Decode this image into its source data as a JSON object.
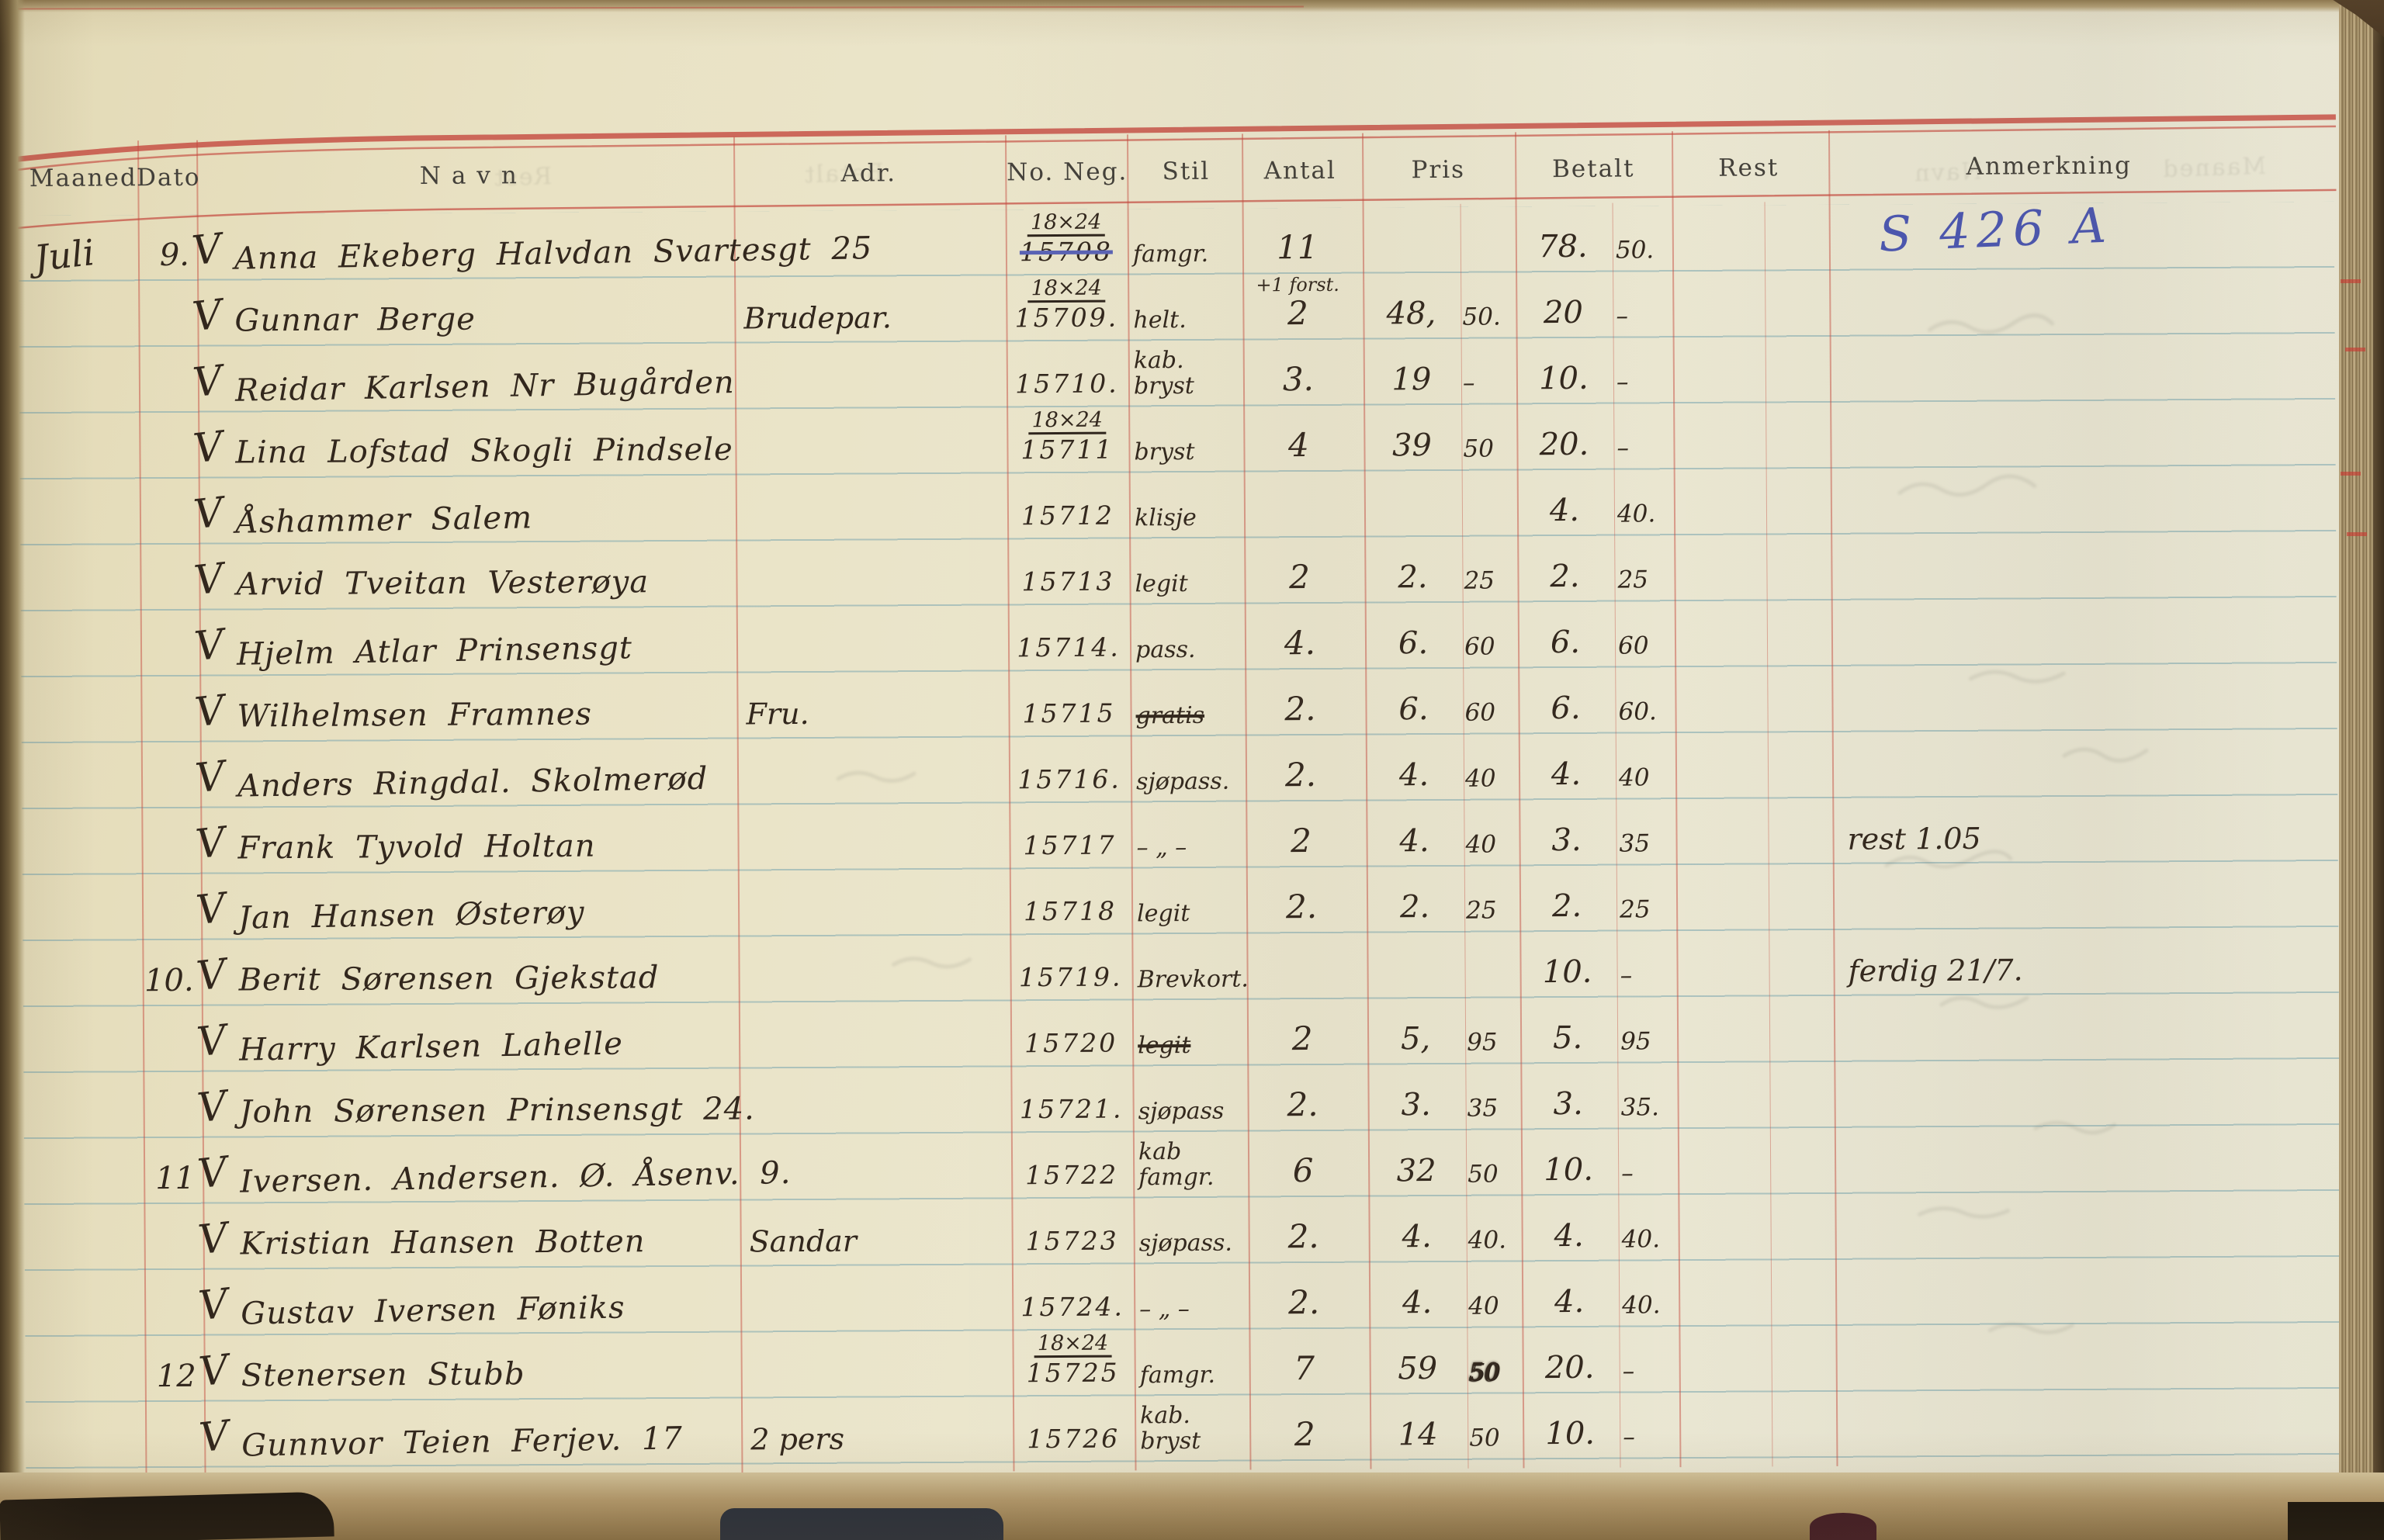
{
  "document": {
    "kind": "photographer-ledger-scan",
    "check_glyph": "V",
    "colors": {
      "paper": "#e9e3c9",
      "rule_red": "#c84f44",
      "rule_blue": "#7ba6af",
      "ink": "#32271d",
      "ink_blue": "#4a55b0"
    }
  },
  "table": {
    "headers": [
      "Maaned",
      "Dato",
      "Navn",
      "Adr.",
      "No. Neg.",
      "Stil",
      "Antal",
      "Pris",
      "Betalt",
      "Rest",
      "Anmerkning"
    ],
    "rows": [
      {
        "maaned": "Juli",
        "dato": "9.",
        "check": true,
        "navn": "Anna Ekeberg Halvdan Svartesgt 25",
        "neg_size": "18×24",
        "neg_no": "15708",
        "neg_struck": true,
        "stil": "famgr.",
        "antal": "11",
        "betalt": "78.",
        "betalt_ore": "50.",
        "anm": "S 426 A",
        "anm_blue": true
      },
      {
        "check": true,
        "navn": "Gunnar Berge",
        "adr": "Brudepar.",
        "neg_size": "18×24",
        "neg_no": "15709.",
        "stil": "helt.",
        "antal_note": "+1 forst.",
        "antal": "2",
        "pris": "48,",
        "pris_ore": "50.",
        "betalt": "20",
        "betalt_ore": "–"
      },
      {
        "check": true,
        "navn": "Reidar Karlsen Nr Bugården",
        "neg_no": "15710.",
        "stil": "kab.",
        "stil2": "bryst",
        "antal": "3.",
        "pris": "19",
        "pris_ore": "–",
        "betalt": "10.",
        "betalt_ore": "–"
      },
      {
        "check": true,
        "navn": "Lina Lofstad Skogli Pindsele",
        "neg_size": "18×24",
        "neg_no": "15711",
        "stil": "bryst",
        "antal": "4",
        "pris": "39",
        "pris_ore": "50",
        "betalt": "20.",
        "betalt_ore": "–"
      },
      {
        "check": true,
        "navn": "Åshammer Salem",
        "neg_no": "15712",
        "stil": "klisje",
        "betalt": "4.",
        "betalt_ore": "40."
      },
      {
        "check": true,
        "navn": "Arvid Tveitan Vesterøya",
        "neg_no": "15713",
        "stil": "legit",
        "antal": "2",
        "pris": "2.",
        "pris_ore": "25",
        "betalt": "2.",
        "betalt_ore": "25"
      },
      {
        "check": true,
        "navn": "Hjelm Atlar Prinsensgt",
        "neg_no": "15714.",
        "stil": "pass.",
        "antal": "4.",
        "pris": "6.",
        "pris_ore": "60",
        "betalt": "6.",
        "betalt_ore": "60"
      },
      {
        "check": true,
        "navn": "Wilhelmsen Framnes",
        "adr": "Fru.",
        "neg_no": "15715",
        "stil": "gratis",
        "stil_struck": true,
        "antal": "2.",
        "pris": "6.",
        "pris_ore": "60",
        "betalt": "6.",
        "betalt_ore": "60."
      },
      {
        "check": true,
        "navn": "Anders Ringdal. Skolmerød",
        "neg_no": "15716.",
        "stil": "sjøpass.",
        "antal": "2.",
        "pris": "4.",
        "pris_ore": "40",
        "betalt": "4.",
        "betalt_ore": "40"
      },
      {
        "check": true,
        "navn": "Frank Tyvold Holtan",
        "neg_no": "15717",
        "stil": "– „ –",
        "antal": "2",
        "pris": "4.",
        "pris_ore": "40",
        "betalt": "3.",
        "betalt_ore": "35",
        "anm": "rest 1.05"
      },
      {
        "check": true,
        "navn": "Jan Hansen Østerøy",
        "neg_no": "15718",
        "stil": "legit",
        "antal": "2.",
        "pris": "2.",
        "pris_ore": "25",
        "betalt": "2.",
        "betalt_ore": "25"
      },
      {
        "dato": "10.",
        "check": true,
        "navn": "Berit Sørensen Gjekstad",
        "neg_no": "15719.",
        "stil": "Brevkort.",
        "betalt": "10.",
        "betalt_ore": "–",
        "anm": "ferdig 21/7."
      },
      {
        "check": true,
        "navn": "Harry Karlsen Lahelle",
        "neg_no": "15720",
        "stil": "legit",
        "stil_struck": true,
        "antal": "2",
        "pris": "5,",
        "pris_ore": "95",
        "betalt": "5.",
        "betalt_ore": "95"
      },
      {
        "check": true,
        "navn": "John Sørensen Prinsensgt 24.",
        "neg_no": "15721.",
        "stil": "sjøpass",
        "antal": "2.",
        "pris": "3.",
        "pris_ore": "35",
        "betalt": "3.",
        "betalt_ore": "35."
      },
      {
        "dato": "11",
        "check": true,
        "navn": "Iversen. Andersen. Ø. Åsenv. 9.",
        "neg_no": "15722",
        "stil": "kab",
        "stil2": "famgr.",
        "antal": "6",
        "pris": "32",
        "pris_ore": "50",
        "betalt": "10.",
        "betalt_ore": "–"
      },
      {
        "check": true,
        "navn": "Kristian Hansen Botten",
        "adr": "Sandar",
        "neg_no": "15723",
        "stil": "sjøpass.",
        "antal": "2.",
        "pris": "4.",
        "pris_ore": "40.",
        "betalt": "4.",
        "betalt_ore": "40."
      },
      {
        "check": true,
        "navn": "Gustav Iversen Føniks",
        "neg_no": "15724.",
        "stil": "– „ –",
        "antal": "2.",
        "pris": "4.",
        "pris_ore": "40",
        "betalt": "4.",
        "betalt_ore": "40."
      },
      {
        "dato": "12",
        "check": true,
        "navn": "Stenersen Stubb",
        "neg_size": "18×24",
        "neg_no": "15725",
        "stil": "famgr.",
        "antal": "7",
        "pris": "59",
        "pris_ore": "50",
        "pris_blot": true,
        "betalt": "20.",
        "betalt_ore": "–"
      },
      {
        "check": true,
        "navn": "Gunnvor Teien Ferjev. 17",
        "adr": "2 pers",
        "neg_no": "15726",
        "stil": "kab.",
        "stil2": "bryst",
        "antal": "2",
        "pris": "14",
        "pris_ore": "50",
        "betalt": "10.",
        "betalt_ore": "–"
      }
    ]
  }
}
